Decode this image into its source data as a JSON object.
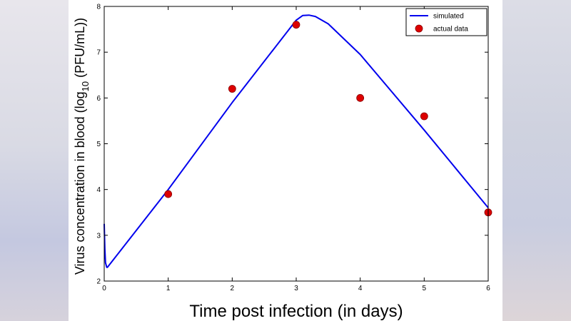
{
  "chart_data": {
    "type": "line",
    "title": "",
    "xlabel": "Time post infection (in days)",
    "ylabel_main": "Virus concentration in blood (log",
    "ylabel_sub": "10",
    "ylabel_tail": " (PFU/mL))",
    "xlim": [
      0,
      6
    ],
    "ylim": [
      2,
      8
    ],
    "xticks": [
      0,
      1,
      2,
      3,
      4,
      5,
      6
    ],
    "yticks": [
      2,
      3,
      4,
      5,
      6,
      7,
      8
    ],
    "grid": false,
    "legend_position": "top-right",
    "series": [
      {
        "name": "simulated",
        "kind": "line",
        "color": "#0000ee",
        "x": [
          0.0,
          0.01,
          0.02,
          0.04,
          0.05,
          1.0,
          2.0,
          3.0,
          3.1,
          3.2,
          3.3,
          3.5,
          4.0,
          5.0,
          6.0
        ],
        "y": [
          3.25,
          2.7,
          2.4,
          2.3,
          2.3,
          4.0,
          5.9,
          7.7,
          7.8,
          7.81,
          7.78,
          7.62,
          6.95,
          5.3,
          3.6
        ]
      },
      {
        "name": "actual data",
        "kind": "scatter",
        "color": "#dd0000",
        "x": [
          1,
          2,
          3,
          4,
          5,
          6
        ],
        "y": [
          3.9,
          6.2,
          7.6,
          6.0,
          5.6,
          3.5
        ]
      }
    ]
  }
}
